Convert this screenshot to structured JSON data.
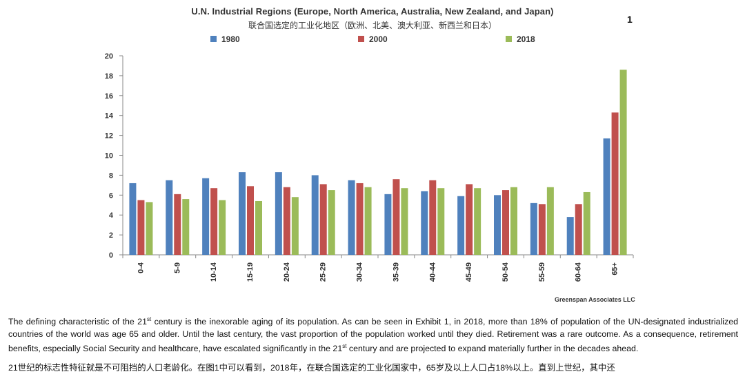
{
  "exhibit_number": "1",
  "chart_data": {
    "type": "bar",
    "title": "U.N. Industrial Regions (Europe, North America, Australia, New Zealand, and Japan)",
    "subtitle": "联合国选定的工业化地区（欧洲、北美、澳大利亚、新西兰和日本）",
    "categories": [
      "0-4",
      "5-9",
      "10-14",
      "15-19",
      "20-24",
      "25-29",
      "30-34",
      "35-39",
      "40-44",
      "45-49",
      "50-54",
      "55-59",
      "60-64",
      "65+"
    ],
    "series": [
      {
        "name": "1980",
        "color": "#4f81bd",
        "values": [
          7.2,
          7.5,
          7.7,
          8.3,
          8.3,
          8.0,
          7.5,
          6.1,
          6.4,
          5.9,
          6.0,
          5.2,
          3.8,
          11.7
        ]
      },
      {
        "name": "2000",
        "color": "#c0504d",
        "values": [
          5.5,
          6.1,
          6.7,
          6.9,
          6.8,
          7.1,
          7.2,
          7.6,
          7.5,
          7.1,
          6.5,
          5.1,
          5.1,
          14.3
        ]
      },
      {
        "name": "2018",
        "color": "#9bbb59",
        "values": [
          5.3,
          5.6,
          5.5,
          5.4,
          5.8,
          6.5,
          6.8,
          6.7,
          6.7,
          6.7,
          6.8,
          6.8,
          6.3,
          18.6
        ]
      }
    ],
    "ylim": [
      0,
      20
    ],
    "yticks": [
      0,
      2,
      4,
      6,
      8,
      10,
      12,
      14,
      16,
      18,
      20
    ],
    "grid": false,
    "legend_position": "top"
  },
  "source": "Greenspan Associates LLC",
  "paragraph": {
    "part1": "The defining characteristic of the 21",
    "sup1": "st",
    "part2": " century is the inexorable aging of its population.  As can be seen in Exhibit 1, in 2018, more than 18% of population of the UN-designated industrialized countries of the world was age 65 and older.  Until the last century, the vast proportion of the population worked until they died.  Retirement was a rare outcome.  As a consequence, retirement benefits, especially Social Security and healthcare, have escalated significantly in the 21",
    "sup2": "st",
    "part3": " century and are projected to expand materially further in the decades ahead."
  },
  "paragraph_zh": "21世纪的标志性特征就是不可阻挡的人口老龄化。在图1中可以看到，2018年，在联合国选定的工业化国家中，65岁及以上人口占18%以上。直到上世纪，其中还"
}
